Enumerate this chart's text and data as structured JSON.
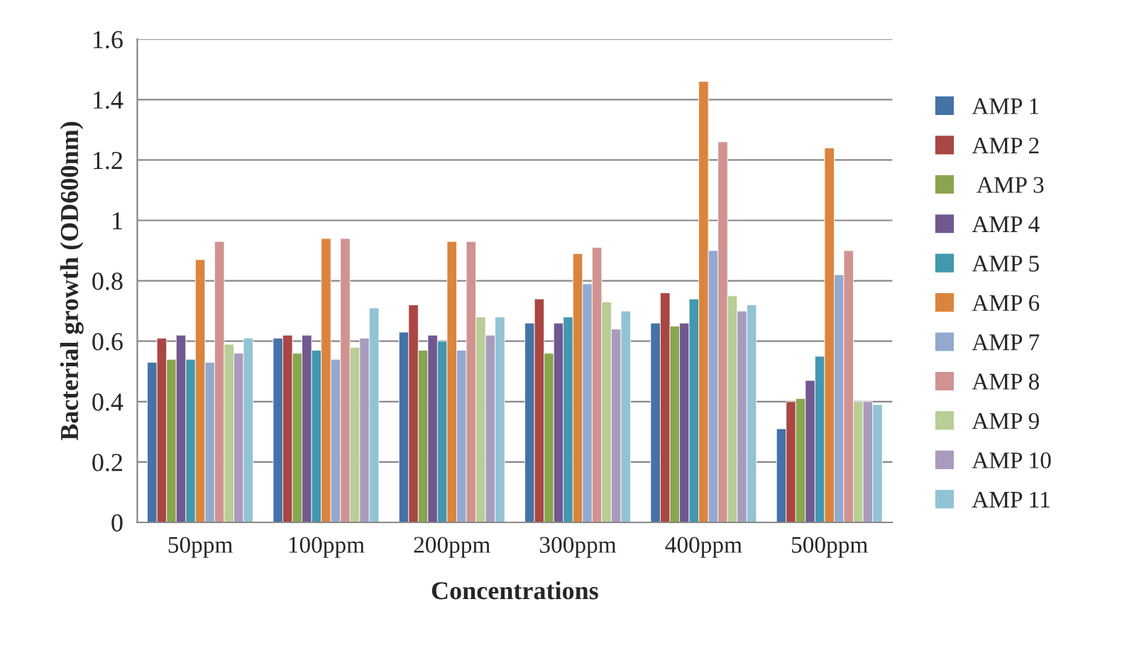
{
  "chart_data": {
    "type": "bar",
    "xlabel": "Concentrations",
    "ylabel": "Bacterial growth (OD600nm)",
    "categories": [
      "50ppm",
      "100ppm",
      "200ppm",
      "300ppm",
      "400ppm",
      "500ppm"
    ],
    "ylim": [
      0,
      1.6
    ],
    "yticks": [
      0,
      0.2,
      0.4,
      0.6,
      0.8,
      1,
      1.2,
      1.4,
      1.6
    ],
    "grid": "y",
    "legend": "right",
    "series": [
      {
        "name": "AMP 1",
        "color": "#4572a7",
        "values": [
          0.53,
          0.61,
          0.63,
          0.66,
          0.66,
          0.31
        ]
      },
      {
        "name": "AMP 2",
        "color": "#aa4643",
        "values": [
          0.61,
          0.62,
          0.72,
          0.74,
          0.76,
          0.4
        ]
      },
      {
        "name": " AMP 3",
        "color": "#89a54e",
        "values": [
          0.54,
          0.56,
          0.57,
          0.56,
          0.65,
          0.41
        ]
      },
      {
        "name": "AMP 4",
        "color": "#71588f",
        "values": [
          0.62,
          0.62,
          0.62,
          0.66,
          0.66,
          0.47
        ]
      },
      {
        "name": "AMP 5",
        "color": "#4198af",
        "values": [
          0.54,
          0.57,
          0.6,
          0.68,
          0.74,
          0.55
        ]
      },
      {
        "name": "AMP 6",
        "color": "#db843d",
        "values": [
          0.87,
          0.94,
          0.93,
          0.89,
          1.46,
          1.24
        ]
      },
      {
        "name": "AMP 7",
        "color": "#93a9cf",
        "values": [
          0.53,
          0.54,
          0.57,
          0.79,
          0.9,
          0.82
        ]
      },
      {
        "name": "AMP 8",
        "color": "#d19392",
        "values": [
          0.93,
          0.94,
          0.93,
          0.91,
          1.26,
          0.9
        ]
      },
      {
        "name": "AMP 9",
        "color": "#b9cd96",
        "values": [
          0.59,
          0.58,
          0.68,
          0.73,
          0.75,
          0.4
        ]
      },
      {
        "name": "AMP 10",
        "color": "#a99bbd",
        "values": [
          0.56,
          0.61,
          0.62,
          0.64,
          0.7,
          0.4
        ]
      },
      {
        "name": "AMP 11",
        "color": "#92c3d4",
        "values": [
          0.61,
          0.71,
          0.68,
          0.7,
          0.72,
          0.39
        ]
      }
    ]
  }
}
